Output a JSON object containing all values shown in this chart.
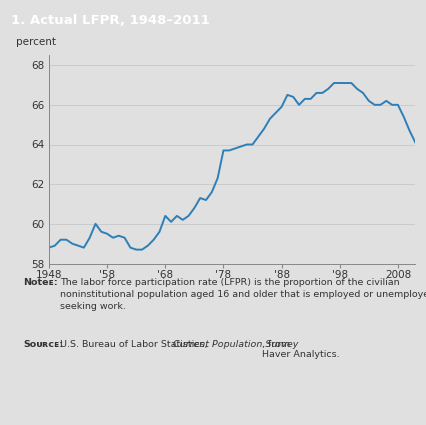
{
  "title": "1. Actual LFPR, 1948–2011",
  "title_bg_color": "#1a6b9a",
  "title_text_color": "#ffffff",
  "ylabel": "percent",
  "background_color": "#e0e0e0",
  "plot_bg_color": "#e0e0e0",
  "line_color": "#2e7eb8",
  "line_width": 1.4,
  "xlim": [
    1948,
    2011
  ],
  "ylim": [
    58,
    68.5
  ],
  "yticks": [
    58,
    60,
    62,
    64,
    66,
    68
  ],
  "xticks": [
    1948,
    1958,
    1968,
    1978,
    1988,
    1998,
    2008
  ],
  "xticklabels": [
    "1948",
    "'58",
    "'68",
    "'78",
    "'88",
    "'98",
    "2008"
  ],
  "years": [
    1948,
    1949,
    1950,
    1951,
    1952,
    1953,
    1954,
    1955,
    1956,
    1957,
    1958,
    1959,
    1960,
    1961,
    1962,
    1963,
    1964,
    1965,
    1966,
    1967,
    1968,
    1969,
    1970,
    1971,
    1972,
    1973,
    1974,
    1975,
    1976,
    1977,
    1978,
    1979,
    1980,
    1981,
    1982,
    1983,
    1984,
    1985,
    1986,
    1987,
    1988,
    1989,
    1990,
    1991,
    1992,
    1993,
    1994,
    1995,
    1996,
    1997,
    1998,
    1999,
    2000,
    2001,
    2002,
    2003,
    2004,
    2005,
    2006,
    2007,
    2008,
    2009,
    2010,
    2011
  ],
  "values": [
    58.8,
    58.9,
    59.2,
    59.2,
    59.0,
    58.9,
    58.8,
    59.3,
    60.0,
    59.6,
    59.5,
    59.3,
    59.4,
    59.3,
    58.8,
    58.7,
    58.7,
    58.9,
    59.2,
    59.6,
    60.4,
    60.1,
    60.4,
    60.2,
    60.4,
    60.8,
    61.3,
    61.2,
    61.6,
    62.3,
    63.7,
    63.7,
    63.8,
    63.9,
    64.0,
    64.0,
    64.4,
    64.8,
    65.3,
    65.6,
    65.9,
    66.5,
    66.4,
    66.0,
    66.3,
    66.3,
    66.6,
    66.6,
    66.8,
    67.1,
    67.1,
    67.1,
    67.1,
    66.8,
    66.6,
    66.2,
    66.0,
    66.0,
    66.2,
    66.0,
    66.0,
    65.4,
    64.7,
    64.1
  ]
}
